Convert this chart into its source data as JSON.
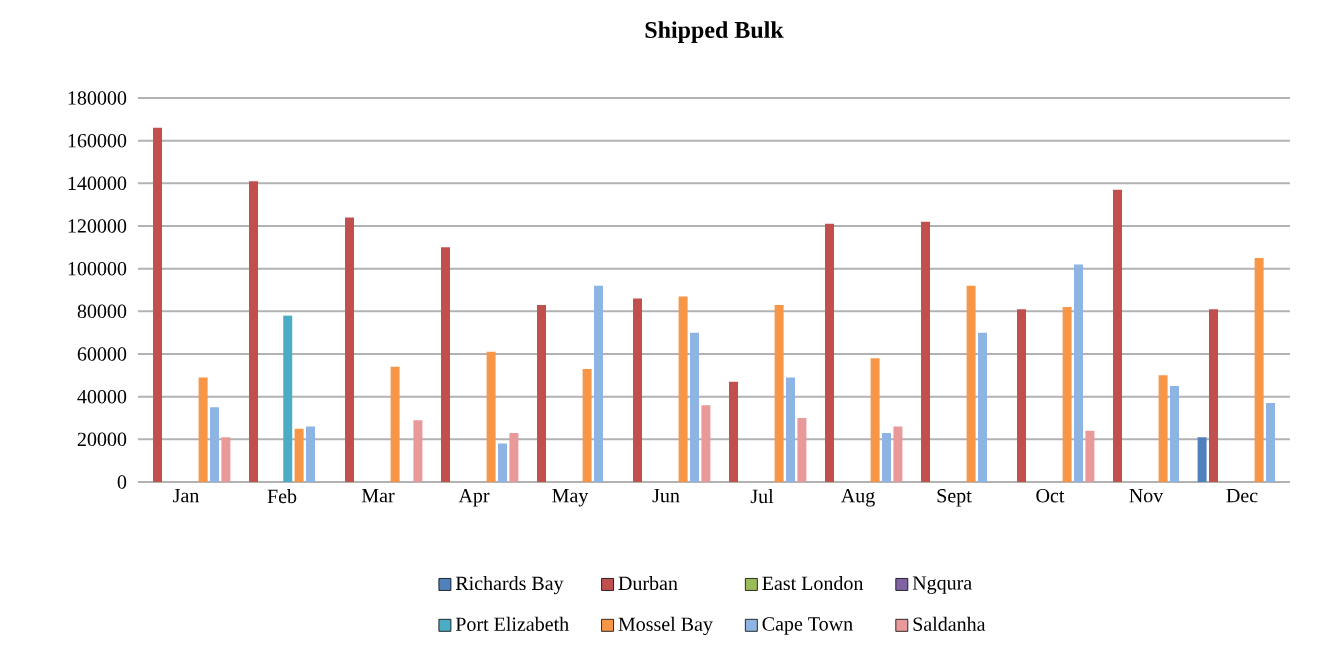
{
  "chart_data": {
    "type": "bar",
    "title": "Shipped Bulk",
    "categories": [
      "Jan",
      "Feb",
      "Mar",
      "Apr",
      "May",
      "Jun",
      "Jul",
      "Aug",
      "Sept",
      "Oct",
      "Nov",
      "Dec"
    ],
    "series": [
      {
        "name": "Richards Bay",
        "color": "#4f81bd",
        "values": [
          null,
          null,
          null,
          null,
          null,
          null,
          null,
          null,
          null,
          null,
          null,
          21000
        ]
      },
      {
        "name": "Durban",
        "color": "#c0504d",
        "values": [
          166000,
          141000,
          124000,
          110000,
          83000,
          86000,
          47000,
          121000,
          122000,
          81000,
          137000,
          81000
        ]
      },
      {
        "name": "East London",
        "color": "#9bbb59",
        "values": [
          null,
          null,
          null,
          null,
          null,
          null,
          null,
          null,
          null,
          null,
          null,
          null
        ]
      },
      {
        "name": "Ngqura",
        "color": "#8064a2",
        "values": [
          null,
          null,
          null,
          null,
          null,
          null,
          null,
          null,
          null,
          null,
          null,
          null
        ]
      },
      {
        "name": "Port Elizabeth",
        "color": "#4bacc6",
        "values": [
          null,
          78000,
          null,
          null,
          null,
          null,
          null,
          null,
          null,
          null,
          null,
          null
        ]
      },
      {
        "name": "Mossel Bay",
        "color": "#f79646",
        "values": [
          49000,
          25000,
          54000,
          61000,
          53000,
          87000,
          83000,
          58000,
          92000,
          82000,
          50000,
          105000
        ]
      },
      {
        "name": "Cape Town",
        "color": "#8eb4e3",
        "values": [
          35000,
          26000,
          null,
          18000,
          92000,
          70000,
          49000,
          23000,
          70000,
          102000,
          45000,
          37000
        ]
      },
      {
        "name": "Saldanha",
        "color": "#e89a9a",
        "values": [
          21000,
          null,
          29000,
          23000,
          null,
          36000,
          30000,
          26000,
          null,
          24000,
          null,
          null
        ]
      }
    ],
    "ylim": [
      0,
      180000
    ],
    "yticks": [
      0,
      20000,
      40000,
      60000,
      80000,
      100000,
      120000,
      140000,
      160000,
      180000
    ],
    "grid": "y",
    "legend": "bottom"
  }
}
